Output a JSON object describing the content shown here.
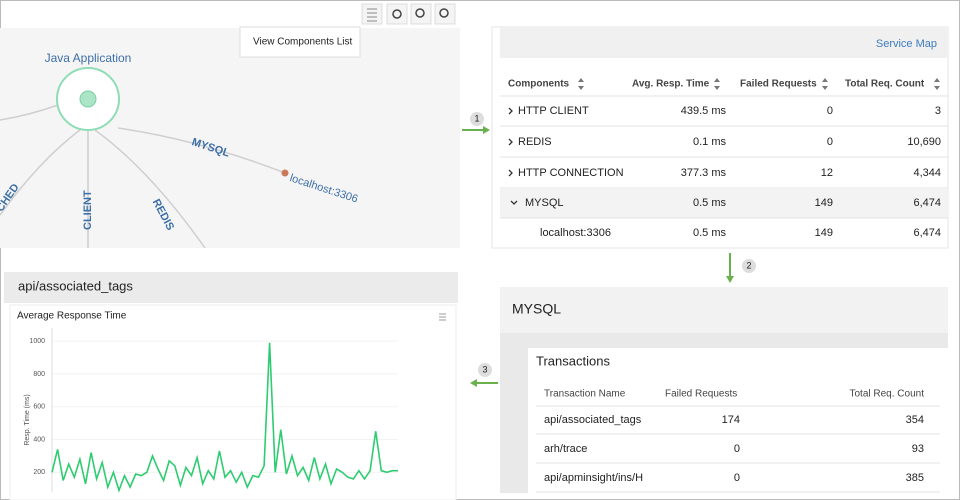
{
  "toolbar": {
    "tooltip": "View Components List"
  },
  "service_map": {
    "app_node": "Java Application",
    "edges": [
      "MYSQL",
      "REDIS",
      "CLIENT",
      "CHED"
    ],
    "host_node": "localhost:3306"
  },
  "steps": [
    "1",
    "2",
    "3"
  ],
  "components": {
    "link": "Service Map",
    "columns": [
      "Components",
      "Avg. Resp. Time",
      "Failed Requests",
      "Total Req. Count"
    ],
    "rows": [
      [
        "HTTP CLIENT",
        "439.5 ms",
        "0",
        "3"
      ],
      [
        "REDIS",
        "0.1 ms",
        "0",
        "10,690"
      ],
      [
        "HTTP CONNECTION",
        "377.3 ms",
        "12",
        "4,344"
      ],
      [
        "MYSQL",
        "0.5 ms",
        "149",
        "6,474"
      ],
      [
        "localhost:3306",
        "0.5 ms",
        "149",
        "6,474"
      ]
    ]
  },
  "mysql_panel": {
    "title": "MYSQL",
    "section": "Transactions",
    "columns": [
      "Transaction Name",
      "Failed Requests",
      "Total Req. Count"
    ],
    "rows": [
      [
        "api/associated_tags",
        "174",
        "354"
      ],
      [
        "arh/trace",
        "0",
        "93"
      ],
      [
        "api/apminsight/ins/H",
        "0",
        "385"
      ]
    ]
  },
  "transaction": {
    "title": "api/associated_tags"
  },
  "chart_data": {
    "type": "line",
    "title": "Average Response Time",
    "y_label": "Resp. Time (ms)",
    "ylim": [
      80,
      1080
    ],
    "yticks": [
      200,
      400,
      600,
      800,
      1000
    ],
    "grid": true,
    "color": "#2ecc71",
    "values": [
      200,
      340,
      150,
      250,
      170,
      280,
      130,
      320,
      160,
      260,
      110,
      200,
      90,
      180,
      110,
      190,
      180,
      200,
      300,
      220,
      150,
      270,
      240,
      120,
      230,
      180,
      290,
      130,
      210,
      160,
      330,
      170,
      210,
      140,
      200,
      110,
      180,
      170,
      240,
      990,
      200,
      460,
      190,
      300,
      180,
      230,
      150,
      290,
      160,
      250,
      130,
      220,
      200,
      170,
      160,
      210,
      160,
      210,
      450,
      210,
      200,
      210,
      210
    ]
  }
}
